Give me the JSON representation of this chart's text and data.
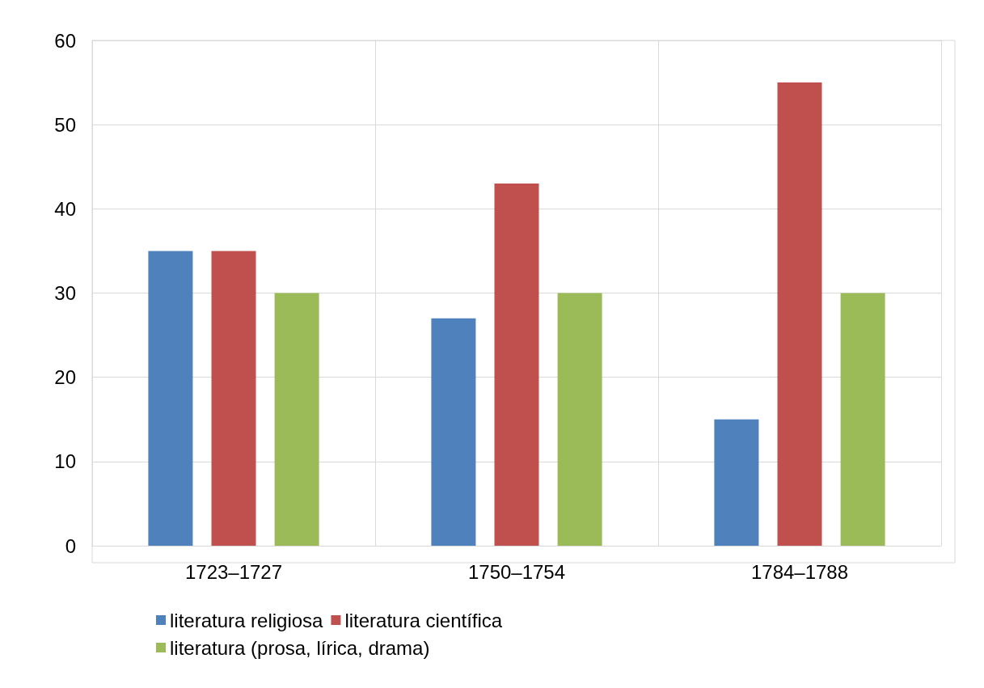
{
  "chart_data": {
    "type": "bar",
    "categories": [
      "1723–1727",
      "1750–1754",
      "1784–1788"
    ],
    "series": [
      {
        "name": "literatura religiosa",
        "color": "#4f81bd",
        "values": [
          35,
          27,
          15
        ]
      },
      {
        "name": "literatura científica",
        "color": "#c0504d",
        "values": [
          35,
          43,
          55
        ]
      },
      {
        "name": "literatura (prosa, lírica, drama)",
        "color": "#9bbb59",
        "values": [
          30,
          30,
          30
        ]
      }
    ],
    "ylim": [
      0,
      60
    ],
    "yticks": [
      0,
      10,
      20,
      30,
      40,
      50,
      60
    ],
    "grid": true,
    "legend": "bottom left"
  }
}
